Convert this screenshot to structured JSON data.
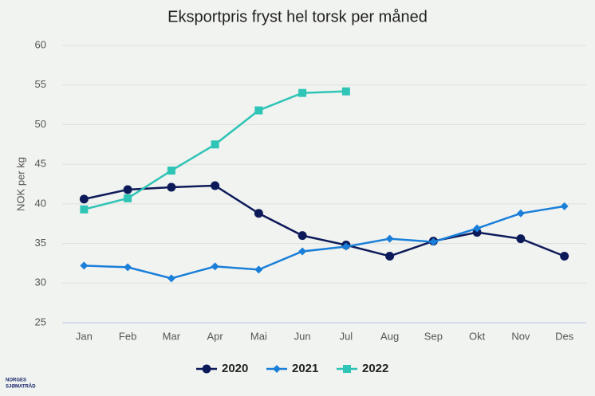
{
  "chart_data": {
    "type": "line",
    "title": "Eksportpris fryst hel torsk per måned",
    "y_label": "NOK per kg",
    "categories": [
      "Jan",
      "Feb",
      "Mar",
      "Apr",
      "Mai",
      "Jun",
      "Jul",
      "Aug",
      "Sep",
      "Okt",
      "Nov",
      "Des"
    ],
    "series": [
      {
        "name": "2020",
        "color": "#0d1a5a",
        "marker": "circle",
        "values": [
          40.6,
          41.8,
          42.1,
          42.3,
          38.8,
          36.0,
          34.8,
          33.4,
          35.3,
          36.4,
          35.6,
          33.4
        ]
      },
      {
        "name": "2021",
        "color": "#1a7fd9",
        "marker": "diamond",
        "values": [
          32.2,
          32.0,
          30.6,
          32.1,
          31.7,
          34.0,
          34.6,
          35.6,
          35.2,
          36.9,
          38.8,
          39.7
        ]
      },
      {
        "name": "2022",
        "color": "#2ec4b6",
        "marker": "square",
        "values": [
          39.3,
          40.7,
          44.2,
          47.5,
          51.8,
          54.0,
          54.2,
          null,
          null,
          null,
          null,
          null
        ]
      }
    ],
    "ylim": [
      25,
      60
    ],
    "yticks": [
      25,
      30,
      35,
      40,
      45,
      50,
      55,
      60
    ],
    "grid": true,
    "legend": "bottom"
  },
  "logo": [
    "NORGES",
    "SJØMATRÅD"
  ]
}
